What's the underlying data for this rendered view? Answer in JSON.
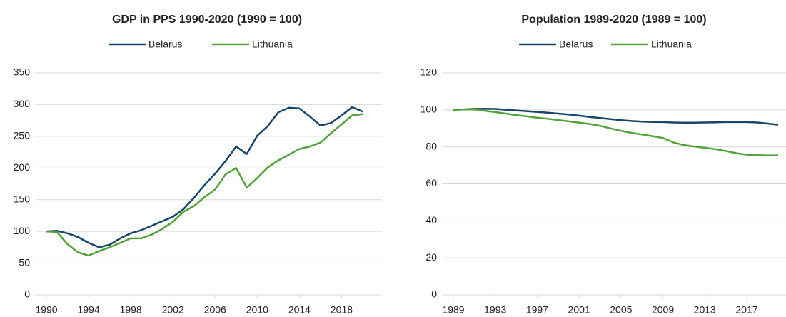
{
  "chart_data": [
    {
      "type": "line",
      "title": "GDP in PPS 1990-2020 (1990 = 100)",
      "x": [
        1990,
        1991,
        1992,
        1993,
        1994,
        1995,
        1996,
        1997,
        1998,
        1999,
        2000,
        2001,
        2002,
        2003,
        2004,
        2005,
        2006,
        2007,
        2008,
        2009,
        2010,
        2011,
        2012,
        2013,
        2014,
        2015,
        2016,
        2017,
        2018,
        2019,
        2020
      ],
      "series": [
        {
          "name": "Belarus",
          "color": "#17456b",
          "values": [
            100,
            101,
            97,
            91,
            82,
            75,
            79,
            89,
            97,
            102,
            109,
            116,
            123,
            135,
            153,
            173,
            191,
            211,
            234,
            222,
            251,
            266,
            288,
            295,
            294,
            281,
            267,
            271,
            283,
            296,
            289
          ]
        },
        {
          "name": "Lithuania",
          "color": "#53a33a",
          "values": [
            100,
            99,
            80,
            67,
            62,
            69,
            75,
            82,
            89,
            89,
            95,
            104,
            115,
            131,
            140,
            154,
            166,
            190,
            200,
            169,
            184,
            201,
            212,
            221,
            230,
            234,
            240,
            255,
            269,
            283,
            285
          ]
        }
      ],
      "xlim": [
        1990,
        2020
      ],
      "xticks": [
        1990,
        1994,
        1998,
        2002,
        2006,
        2010,
        2014,
        2018
      ],
      "ylim": [
        0,
        350
      ],
      "yticks": [
        0,
        50,
        100,
        150,
        200,
        250,
        300,
        350
      ],
      "grid": true
    },
    {
      "type": "line",
      "title": "Population 1989-2020 (1989 = 100)",
      "x": [
        1989,
        1990,
        1991,
        1992,
        1993,
        1994,
        1995,
        1996,
        1997,
        1998,
        1999,
        2000,
        2001,
        2002,
        2003,
        2004,
        2005,
        2006,
        2007,
        2008,
        2009,
        2010,
        2011,
        2012,
        2013,
        2014,
        2015,
        2016,
        2017,
        2018,
        2019,
        2020
      ],
      "series": [
        {
          "name": "Belarus",
          "color": "#17456b",
          "values": [
            100,
            100.3,
            100.5,
            100.6,
            100.5,
            100.1,
            99.7,
            99.3,
            98.9,
            98.5,
            98.0,
            97.5,
            96.9,
            96.2,
            95.6,
            95.0,
            94.4,
            94.0,
            93.7,
            93.5,
            93.4,
            93.2,
            93.1,
            93.1,
            93.2,
            93.3,
            93.4,
            93.5,
            93.4,
            93.2,
            92.6,
            92.0
          ]
        },
        {
          "name": "Lithuania",
          "color": "#53a33a",
          "values": [
            100,
            100.2,
            100.3,
            99.5,
            98.8,
            98.0,
            97.2,
            96.5,
            95.8,
            95.2,
            94.5,
            93.8,
            93.1,
            92.4,
            91.4,
            90.0,
            88.7,
            87.6,
            86.7,
            85.8,
            84.8,
            82.4,
            81.0,
            80.2,
            79.5,
            78.8,
            77.8,
            76.6,
            75.8,
            75.5,
            75.4,
            75.4
          ]
        }
      ],
      "xlim": [
        1989,
        2020
      ],
      "xticks": [
        1989,
        1993,
        1997,
        2001,
        2005,
        2009,
        2013,
        2017
      ],
      "ylim": [
        0,
        120
      ],
      "yticks": [
        0,
        20,
        40,
        60,
        80,
        100,
        120
      ],
      "grid": true
    }
  ]
}
